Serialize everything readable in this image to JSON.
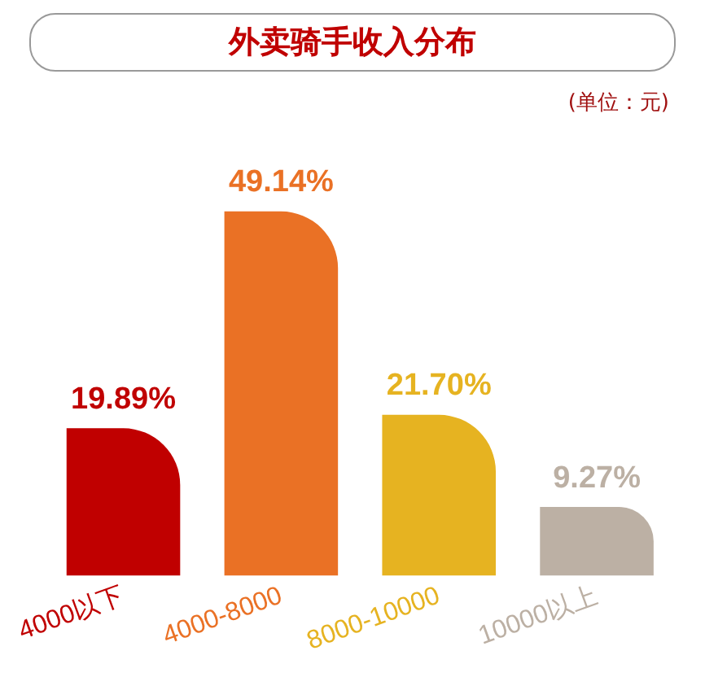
{
  "chart_data": {
    "type": "bar",
    "title": "外卖骑手收入分布",
    "annotations": [
      "(单位：元)"
    ],
    "categories": [
      "4000以下",
      "4000-8000",
      "8000-10000",
      "10000以上"
    ],
    "values": [
      19.89,
      49.14,
      21.7,
      9.27
    ],
    "colors": [
      "#c00000",
      "#ea7125",
      "#e6b321",
      "#bcb0a4"
    ],
    "value_labels": [
      "19.89%",
      "49.14%",
      "21.70%",
      "9.27%"
    ],
    "tick_labels": "x",
    "grid": false,
    "legend": false
  }
}
